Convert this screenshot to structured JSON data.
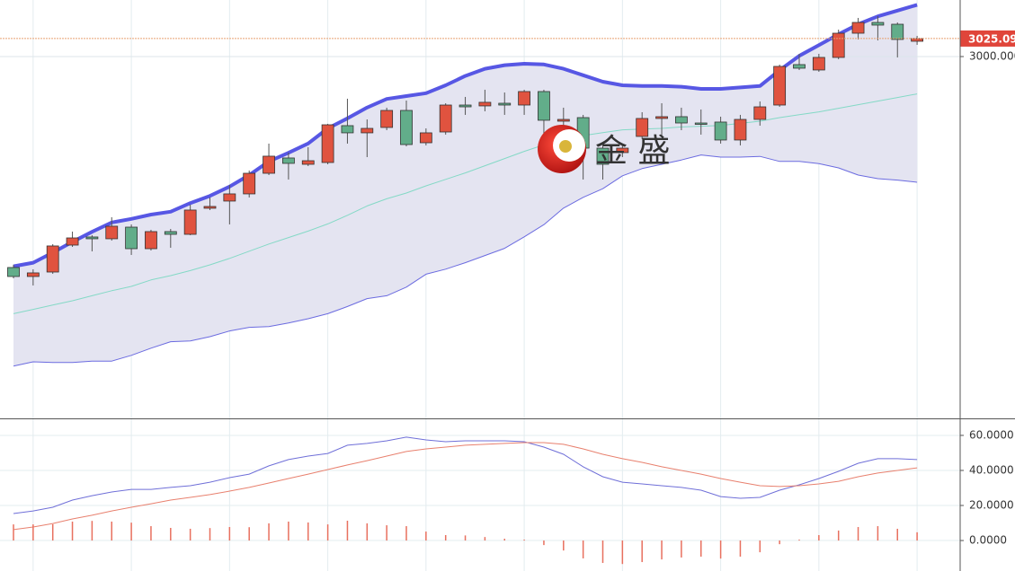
{
  "chart_data": [
    {
      "type": "candlestick",
      "watermark": "金 盛",
      "ylim": [
        2496.25,
        3078.75
      ],
      "yticks": [
        {
          "value": 3000,
          "label": "3000.000"
        }
      ],
      "up_color": "#e0533f",
      "down_color": "#62ad8a",
      "open": [
        2706.3,
        2693.8,
        2700.0,
        2737.5,
        2748.8,
        2746.3,
        2762.5,
        2732.5,
        2756.3,
        2752.5,
        2788.8,
        2798.8,
        2808.8,
        2837.5,
        2858.8,
        2850.0,
        2852.5,
        2903.8,
        2893.8,
        2901.3,
        2925.0,
        2880.0,
        2895.0,
        2932.5,
        2931.3,
        2935.0,
        2932.5,
        2951.3,
        2910.0,
        2915.0,
        2872.5,
        2866.3,
        2888.8,
        2913.8,
        2916.3,
        2907.5,
        2908.8,
        2883.8,
        2912.5,
        2932.5,
        2988.8,
        2981.3,
        2998.8,
        3032.5,
        3047.5,
        3045.0,
        3021.3
      ],
      "high": [
        2710.0,
        2703.8,
        2738.8,
        2756.3,
        2751.3,
        2776.3,
        2766.3,
        2758.8,
        2760.0,
        2793.8,
        2803.8,
        2821.3,
        2841.3,
        2878.8,
        2866.3,
        2873.8,
        2906.3,
        2941.3,
        2912.5,
        2928.8,
        2938.8,
        2900.0,
        2935.0,
        2943.8,
        2953.8,
        2950.0,
        2953.8,
        2953.8,
        2928.8,
        2918.8,
        2878.8,
        2878.8,
        2922.5,
        2935.0,
        2928.8,
        2926.3,
        2916.3,
        2918.8,
        2937.5,
        2988.8,
        3003.8,
        3003.8,
        3037.5,
        3053.8,
        3056.3,
        3047.5,
        3028.8
      ],
      "low": [
        2691.3,
        2681.3,
        2697.5,
        2735.0,
        2728.8,
        2743.8,
        2723.8,
        2730.0,
        2733.8,
        2751.3,
        2786.3,
        2766.3,
        2803.8,
        2835.0,
        2828.8,
        2847.5,
        2850.0,
        2878.8,
        2860.0,
        2897.5,
        2875.0,
        2876.3,
        2891.3,
        2918.8,
        2923.8,
        2918.8,
        2918.8,
        2888.8,
        2872.5,
        2828.8,
        2828.8,
        2860.0,
        2885.0,
        2888.8,
        2897.5,
        2891.3,
        2878.8,
        2876.3,
        2903.8,
        2930.0,
        2981.3,
        2978.8,
        2996.3,
        3023.8,
        3022.5,
        2998.8,
        3016.3
      ],
      "close": [
        2693.8,
        2698.8,
        2736.3,
        2747.5,
        2746.3,
        2763.8,
        2732.5,
        2756.3,
        2752.5,
        2786.3,
        2791.3,
        2808.8,
        2837.5,
        2861.3,
        2851.3,
        2855.0,
        2905.0,
        2893.8,
        2900.0,
        2925.0,
        2877.5,
        2893.8,
        2932.5,
        2930.0,
        2936.3,
        2932.5,
        2951.3,
        2911.3,
        2912.5,
        2872.5,
        2850.0,
        2872.5,
        2913.8,
        2916.3,
        2907.5,
        2906.3,
        2883.8,
        2912.5,
        2930.0,
        2986.3,
        2983.8,
        2998.8,
        3032.5,
        3047.5,
        3043.8,
        3023.8,
        3025.09
      ],
      "bands": {
        "fill": "#e4e4f1",
        "upper": {
          "color": "#5757e4",
          "values": [
            2708,
            2713,
            2727,
            2742,
            2756,
            2769,
            2774,
            2780,
            2784,
            2796,
            2806,
            2819,
            2835,
            2854,
            2866,
            2879,
            2900,
            2914,
            2929,
            2941,
            2945,
            2949,
            2960,
            2973,
            2983,
            2988,
            2990,
            2989,
            2983,
            2974,
            2965,
            2960,
            2959,
            2959,
            2958,
            2955,
            2955,
            2957,
            2959,
            2981,
            3001,
            3016,
            3031,
            3045,
            3056,
            3064,
            3072
          ]
        },
        "middle": {
          "color": "#84d9c6",
          "values": [
            2642,
            2648,
            2654,
            2660,
            2667,
            2674,
            2680,
            2689,
            2695,
            2702,
            2710,
            2719,
            2729,
            2739,
            2748,
            2757,
            2767,
            2779,
            2792,
            2802,
            2810,
            2820,
            2829,
            2838,
            2848,
            2858,
            2868,
            2877,
            2885,
            2890,
            2894,
            2898,
            2899,
            2900,
            2902,
            2903,
            2904,
            2907,
            2910,
            2915,
            2919,
            2923,
            2928,
            2933,
            2938,
            2943,
            2948
          ]
        },
        "lower": {
          "color": "#6b6be0",
          "values": [
            2569,
            2575,
            2574,
            2574,
            2576,
            2576,
            2584,
            2594,
            2603,
            2604,
            2610,
            2618,
            2623,
            2624,
            2629,
            2635,
            2642,
            2652,
            2663,
            2667,
            2679,
            2697,
            2704,
            2713,
            2723,
            2733,
            2749,
            2766,
            2789,
            2804,
            2816,
            2834,
            2844,
            2850,
            2856,
            2863,
            2860,
            2860,
            2861,
            2854,
            2854,
            2851,
            2845,
            2835,
            2830,
            2828,
            2825
          ]
        }
      }
    },
    {
      "type": "line",
      "ylim": [
        -17.4,
        69.2
      ],
      "yticks": [
        {
          "value": 0,
          "label": "0.0000"
        },
        {
          "value": 20,
          "label": "20.0000"
        },
        {
          "value": 40,
          "label": "40.0000"
        },
        {
          "value": 60,
          "label": "60.0000"
        }
      ],
      "series": [
        {
          "color": "#6f6fd8",
          "values": [
            15.4,
            16.9,
            19.0,
            23.1,
            25.6,
            27.7,
            29.2,
            29.2,
            30.3,
            31.3,
            33.3,
            35.9,
            37.9,
            42.6,
            46.2,
            48.2,
            49.7,
            54.4,
            55.4,
            56.9,
            59.0,
            57.4,
            56.4,
            56.9,
            56.9,
            56.9,
            56.4,
            53.3,
            49.2,
            42.1,
            36.4,
            33.3,
            32.3,
            31.3,
            30.3,
            28.7,
            25.1,
            24.1,
            24.6,
            28.7,
            31.8,
            35.4,
            39.5,
            44.1,
            46.7,
            46.7,
            46.2
          ]
        },
        {
          "color": "#e8806e",
          "values": [
            6.2,
            7.7,
            9.7,
            12.3,
            14.4,
            16.9,
            19.0,
            21.0,
            23.1,
            24.6,
            26.2,
            28.2,
            30.3,
            32.8,
            35.4,
            37.9,
            40.5,
            43.1,
            45.6,
            48.2,
            50.8,
            52.3,
            53.3,
            54.4,
            54.9,
            55.4,
            55.9,
            55.9,
            54.9,
            52.3,
            49.2,
            46.7,
            44.6,
            42.1,
            40.0,
            37.9,
            35.4,
            33.3,
            31.3,
            30.8,
            31.3,
            32.3,
            33.8,
            36.4,
            38.5,
            40.0,
            41.5
          ]
        },
        {
          "type": "bar",
          "color": "#e8705f",
          "values": [
            9.2,
            9.2,
            9.3,
            10.8,
            11.2,
            10.8,
            10.2,
            8.2,
            7.2,
            6.7,
            7.1,
            7.7,
            7.6,
            9.8,
            10.8,
            10.3,
            9.2,
            11.3,
            9.8,
            8.7,
            8.2,
            5.1,
            3.1,
            2.9,
            2.0,
            1.0,
            0.5,
            -2.6,
            -5.7,
            -10.2,
            -12.8,
            -13.4,
            -12.3,
            -10.8,
            -9.7,
            -9.2,
            -10.3,
            -9.2,
            -6.7,
            -2.1,
            0.5,
            3.1,
            5.7,
            7.7,
            8.2,
            6.7,
            4.7
          ]
        }
      ]
    }
  ]
}
